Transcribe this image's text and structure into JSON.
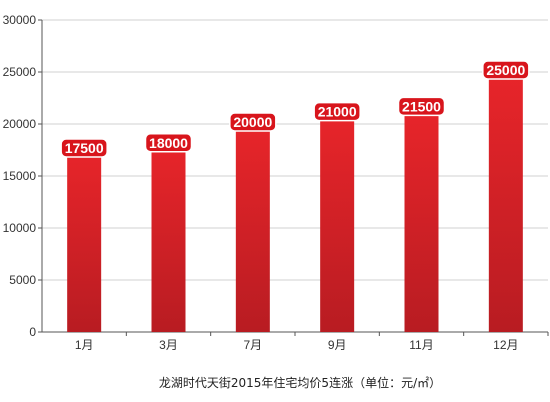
{
  "chart_data": {
    "type": "bar",
    "title": "",
    "caption": "龙湖时代天街2015年住宅均价5连涨（单位：元/㎡）",
    "xlabel": "",
    "ylabel": "",
    "categories": [
      "1月",
      "3月",
      "7月",
      "9月",
      "11月",
      "12月"
    ],
    "values": [
      17500,
      18000,
      20000,
      21000,
      21500,
      25000
    ],
    "data_labels": [
      "17500",
      "18000",
      "20000",
      "21000",
      "21500",
      "25000"
    ],
    "ylim": [
      0,
      30000
    ],
    "yticks": [
      0,
      5000,
      10000,
      15000,
      20000,
      25000,
      30000
    ],
    "ytick_labels": [
      "0",
      "5000",
      "10000",
      "15000",
      "20000",
      "25000",
      "30000"
    ],
    "grid": true,
    "legend": "none",
    "colors": {
      "bar_top": "#e8252a",
      "bar_bottom": "#b81c22",
      "label_fill": "#d8151c",
      "label_stroke": "#ffffff",
      "grid": "#d0d0d0",
      "axis": "#555555"
    }
  }
}
